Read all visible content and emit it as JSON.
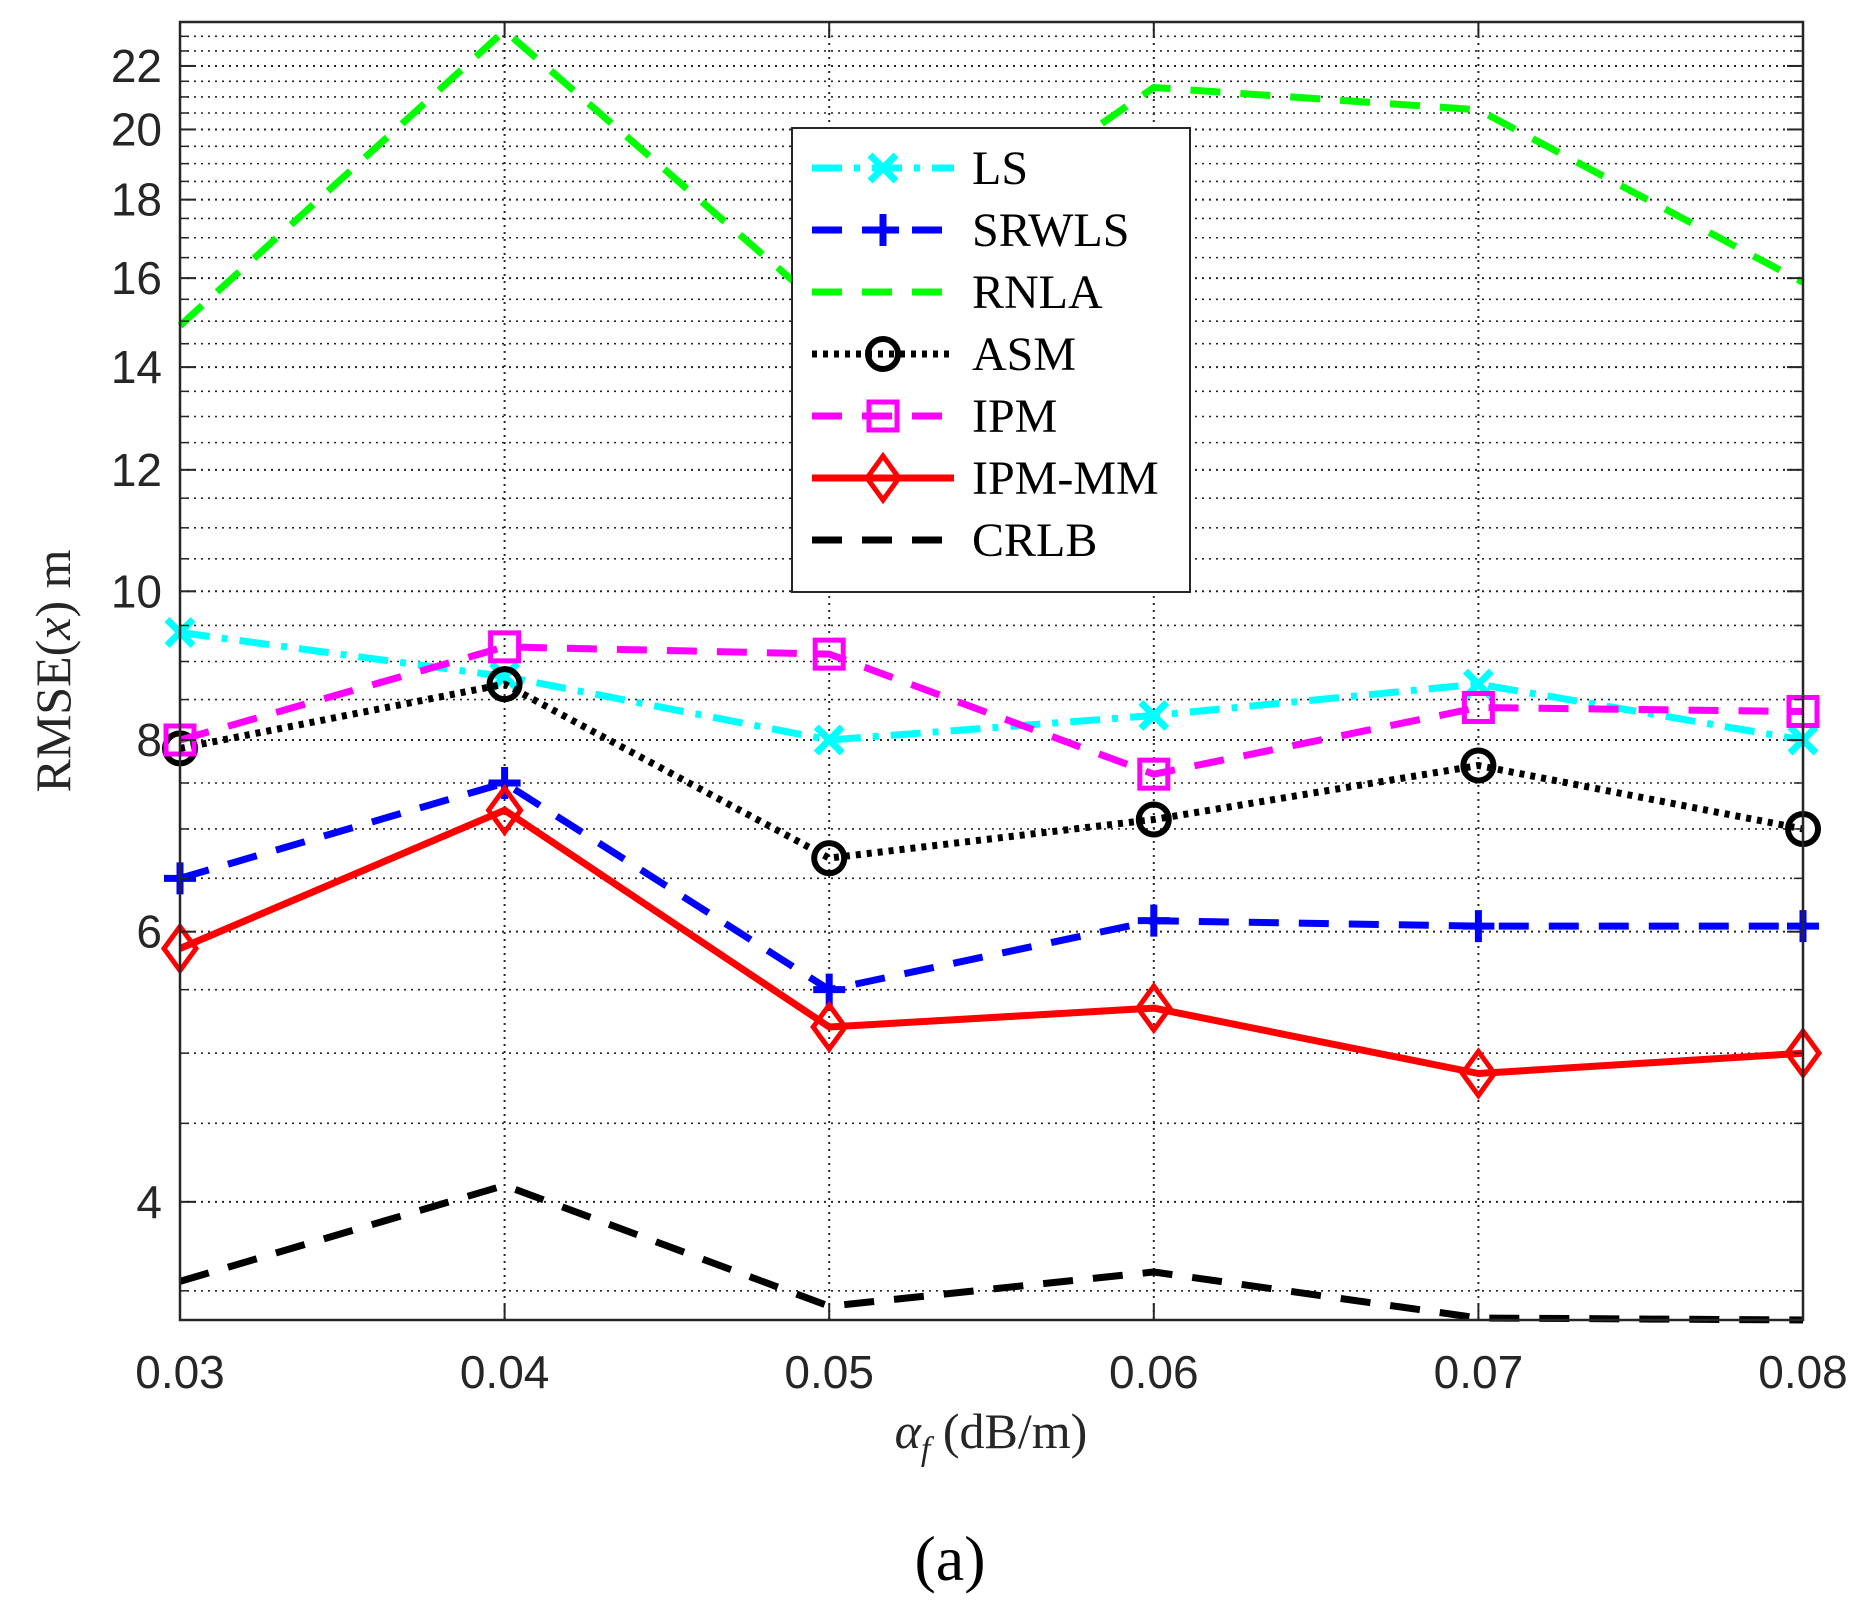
{
  "chart_data": {
    "type": "line",
    "xlabel_symbol": "α",
    "xlabel_sub": "f",
    "xlabel_unit": "(dB/m)",
    "ylabel_pre": "RMSE(",
    "ylabel_var": "x",
    "ylabel_post": ") m",
    "panel_label": "(a)",
    "y_scale": "log",
    "xlim": [
      0.03,
      0.08
    ],
    "ylim": [
      3.35,
      23.5
    ],
    "x": [
      0.03,
      0.04,
      0.05,
      0.06,
      0.07,
      0.08
    ],
    "x_tick_labels": [
      "0.03",
      "0.04",
      "0.05",
      "0.06",
      "0.07",
      "0.08"
    ],
    "y_ticks": [
      4,
      6,
      8,
      10,
      12,
      14,
      16,
      18,
      20,
      22
    ],
    "y_tick_labels": [
      "4",
      "6",
      "8",
      "10",
      "12",
      "14",
      "16",
      "18",
      "20",
      "22"
    ],
    "grid": true,
    "legend_position": "top-center",
    "series": [
      {
        "name": "LS",
        "color": "#00FFFF",
        "dash": "dashdot",
        "marker": "x",
        "values": [
          9.4,
          8.8,
          8.0,
          8.3,
          8.7,
          8.0
        ]
      },
      {
        "name": "SRWLS",
        "color": "#0000FF",
        "dash": "dash",
        "marker": "plus",
        "values": [
          6.5,
          7.5,
          5.5,
          6.1,
          6.05,
          6.05
        ]
      },
      {
        "name": "RNLA",
        "color": "#00FF00",
        "dash": "dash",
        "marker": "none",
        "values": [
          14.9,
          23.2,
          15.2,
          21.3,
          20.6,
          15.9
        ]
      },
      {
        "name": "ASM",
        "color": "#000000",
        "dash": "dot",
        "marker": "circle",
        "values": [
          7.9,
          8.7,
          6.7,
          7.1,
          7.7,
          7.0
        ]
      },
      {
        "name": "IPM",
        "color": "#FF00FF",
        "dash": "dash",
        "marker": "square",
        "values": [
          8.0,
          9.2,
          9.1,
          7.6,
          8.4,
          8.35
        ]
      },
      {
        "name": "IPM-MM",
        "color": "#FF0000",
        "dash": "solid",
        "marker": "diamond",
        "values": [
          5.85,
          7.2,
          5.2,
          5.35,
          4.85,
          5.0
        ]
      },
      {
        "name": "CRLB",
        "color": "#000000",
        "dash": "dash",
        "marker": "none",
        "values": [
          3.55,
          4.1,
          3.42,
          3.6,
          3.36,
          3.35
        ]
      }
    ]
  }
}
